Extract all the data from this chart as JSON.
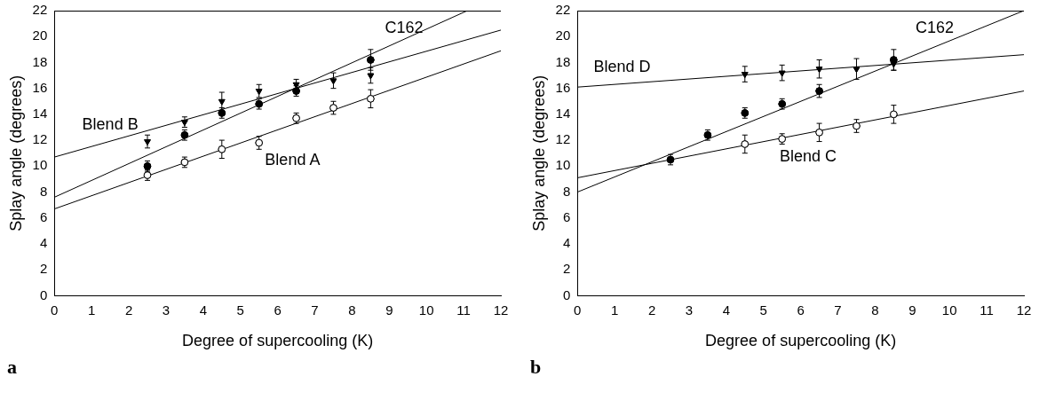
{
  "chart_data": [
    {
      "type": "scatter",
      "xlabel": "Degree of supercooling (K)",
      "ylabel": "Splay angle (degrees)",
      "xlim": [
        0,
        12
      ],
      "xticks": [
        0,
        1,
        2,
        3,
        4,
        5,
        6,
        7,
        8,
        9,
        10,
        11,
        12
      ],
      "ylim": [
        0,
        22
      ],
      "yticks": [
        0,
        2,
        4,
        6,
        8,
        10,
        12,
        14,
        16,
        18,
        20,
        22
      ],
      "grid": false,
      "legend": false,
      "annotations": [
        "a"
      ],
      "series": [
        {
          "type": "scatter",
          "x": [
            2.5,
            3.5,
            4.5,
            5.5,
            6.5,
            7.5,
            8.5
          ],
          "values": [
            9.3,
            10.3,
            11.3,
            11.8,
            13.7,
            14.5,
            15.2
          ],
          "errors": [
            0.4,
            0.4,
            0.7,
            0.5,
            0.4,
            0.5,
            0.7
          ],
          "color": "#ffffff",
          "marker": "circle"
        },
        {
          "type": "scatter",
          "x": [
            2.5,
            3.5,
            4.5,
            5.5,
            6.5,
            8.5
          ],
          "values": [
            10.0,
            12.4,
            14.1,
            14.8,
            15.8,
            18.2
          ],
          "errors": [
            0.4,
            0.4,
            0.4,
            0.4,
            0.4,
            0.8
          ],
          "color": "#000000",
          "marker": "circle"
        },
        {
          "type": "scatter",
          "x": [
            2.5,
            3.5,
            4.5,
            5.5,
            6.5,
            7.5,
            8.5
          ],
          "values": [
            11.9,
            13.4,
            15.0,
            15.8,
            16.3,
            16.6,
            17.0
          ],
          "errors": [
            0.5,
            0.4,
            0.7,
            0.5,
            0.4,
            0.6,
            0.6
          ],
          "color": "#000000",
          "marker": "triangle"
        },
        {
          "type": "line",
          "name": "Blend A",
          "x": [
            0,
            12
          ],
          "values": [
            6.7,
            18.9
          ],
          "color": "#000000",
          "marker": "none"
        },
        {
          "type": "line",
          "name": "Blend B",
          "x": [
            0,
            12
          ],
          "values": [
            10.7,
            20.5
          ],
          "color": "#000000",
          "marker": "none"
        },
        {
          "type": "line",
          "name": "C162",
          "x": [
            0,
            11.1
          ],
          "values": [
            7.6,
            22.0
          ],
          "color": "#000000",
          "marker": "none"
        }
      ]
    },
    {
      "type": "scatter",
      "xlabel": "Degree of supercooling (K)",
      "ylabel": "Splay angle (degrees)",
      "xlim": [
        0,
        12
      ],
      "xticks": [
        0,
        1,
        2,
        3,
        4,
        5,
        6,
        7,
        8,
        9,
        10,
        11,
        12
      ],
      "ylim": [
        0,
        22
      ],
      "yticks": [
        0,
        2,
        4,
        6,
        8,
        10,
        12,
        14,
        16,
        18,
        20,
        22
      ],
      "grid": false,
      "legend": false,
      "annotations": [
        "b"
      ],
      "series": [
        {
          "type": "scatter",
          "x": [
            2.5,
            3.5,
            4.5,
            5.5,
            6.5,
            8.5
          ],
          "values": [
            10.5,
            12.4,
            14.1,
            14.8,
            15.8,
            18.2
          ],
          "errors": [
            0.4,
            0.4,
            0.4,
            0.4,
            0.5,
            0.8
          ],
          "color": "#000000",
          "marker": "circle"
        },
        {
          "type": "scatter",
          "x": [
            4.5,
            5.5,
            6.5,
            7.5,
            8.5
          ],
          "values": [
            11.7,
            12.1,
            12.6,
            13.1,
            14.0
          ],
          "errors": [
            0.7,
            0.4,
            0.7,
            0.5,
            0.7
          ],
          "color": "#ffffff",
          "marker": "circle"
        },
        {
          "type": "scatter",
          "x": [
            4.5,
            5.5,
            6.5,
            7.5,
            8.5
          ],
          "values": [
            17.1,
            17.2,
            17.5,
            17.5,
            17.9
          ],
          "errors": [
            0.6,
            0.6,
            0.7,
            0.8,
            0.5
          ],
          "color": "#000000",
          "marker": "triangle"
        },
        {
          "type": "line",
          "name": "Blend C",
          "x": [
            0,
            12
          ],
          "values": [
            9.1,
            15.8
          ],
          "color": "#000000",
          "marker": "none"
        },
        {
          "type": "line",
          "name": "Blend D",
          "x": [
            0,
            12
          ],
          "values": [
            16.1,
            18.6
          ],
          "color": "#000000",
          "marker": "none"
        },
        {
          "type": "line",
          "name": "C162",
          "x": [
            0,
            12
          ],
          "values": [
            8.0,
            22.0
          ],
          "color": "#000000",
          "marker": "none"
        }
      ]
    }
  ]
}
